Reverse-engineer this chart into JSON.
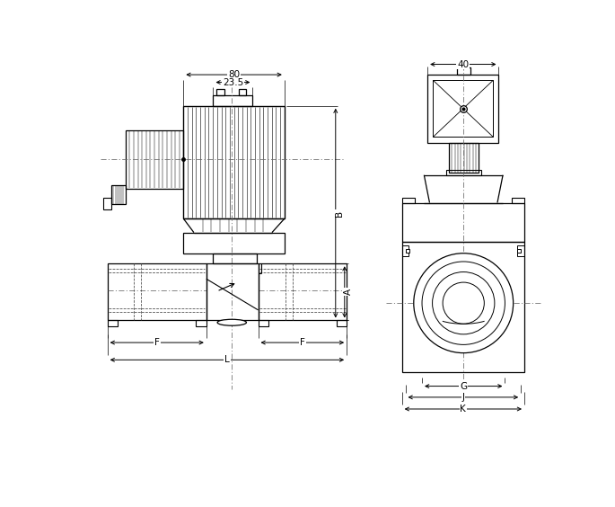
{
  "bg_color": "#ffffff",
  "line_color": "#000000",
  "fig_width": 6.85,
  "fig_height": 5.64,
  "dpi": 100,
  "dim_80": "80",
  "dim_235": "23.5",
  "dim_B": "B",
  "dim_A": "A",
  "dim_F": "F",
  "dim_L": "L",
  "dim_40": "40",
  "dim_G": "G",
  "dim_J": "J",
  "dim_K": "K"
}
